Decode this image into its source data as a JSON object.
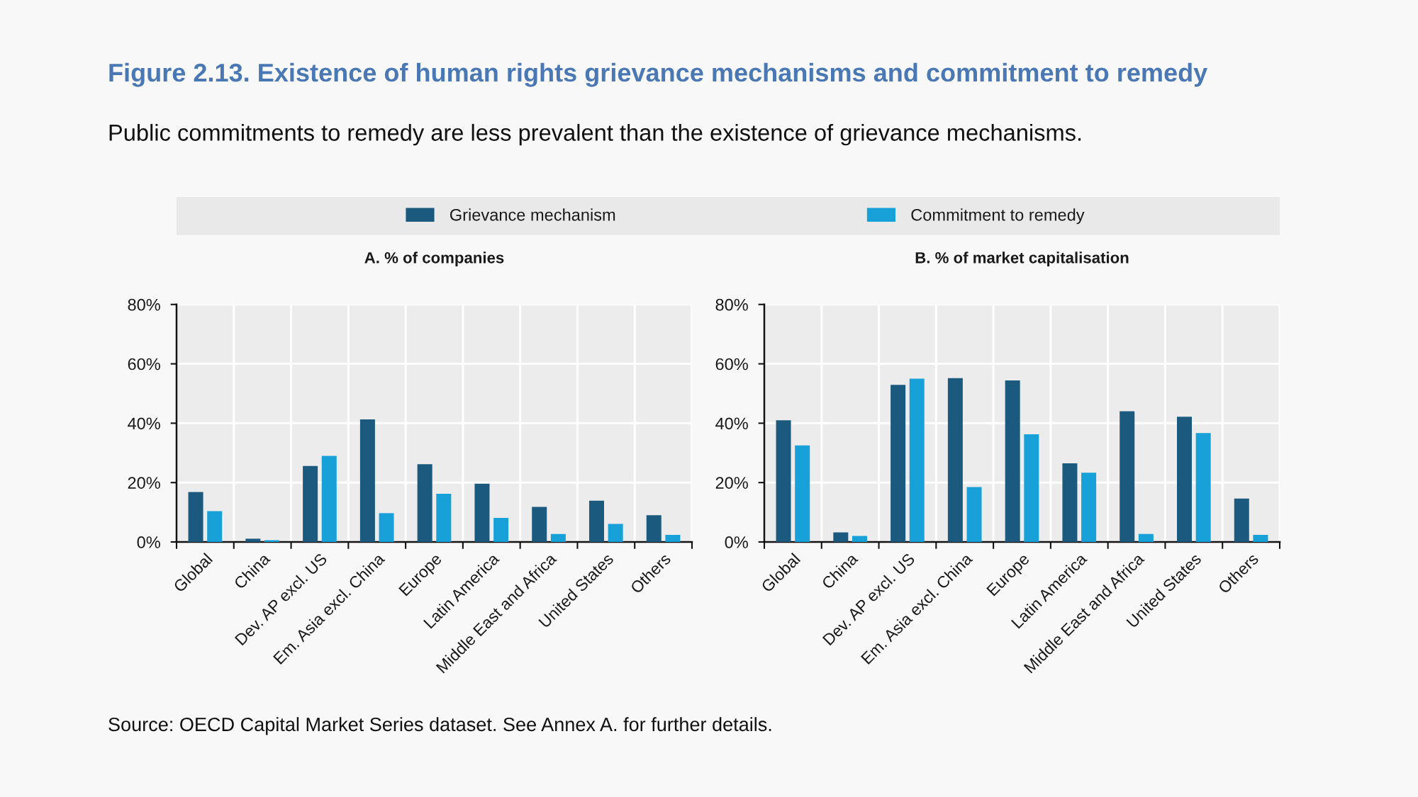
{
  "chart_data": [
    {
      "type": "bar",
      "title": "A. % of companies",
      "categories": [
        "Global",
        "China",
        "Dev. AP excl. US",
        "Em. Asia excl. China",
        "Europe",
        "Latin America",
        "Middle East and Africa",
        "United States",
        "Others"
      ],
      "series": [
        {
          "name": "Grievance mechanism",
          "color": "#1b5a7e",
          "values": [
            16.8,
            1.1,
            25.6,
            41.3,
            26.2,
            19.6,
            11.8,
            13.9,
            9.0
          ]
        },
        {
          "name": "Commitment to remedy",
          "color": "#18a0d8",
          "values": [
            10.4,
            0.6,
            29.0,
            9.7,
            16.2,
            8.1,
            2.7,
            6.1,
            2.4
          ]
        }
      ],
      "ylim": [
        0,
        80
      ],
      "yticks": [
        {
          "value": 0,
          "label": "0%"
        },
        {
          "value": 20,
          "label": "20%"
        },
        {
          "value": 40,
          "label": "40%"
        },
        {
          "value": 60,
          "label": "60%"
        },
        {
          "value": 80,
          "label": "80%"
        }
      ],
      "grid": true,
      "legend": "top",
      "annotations": [
        "Figure 2.13. Existence of human rights grievance mechanisms and commitment to remedy",
        "Public commitments to remedy are less prevalent than the existence of grievance mechanisms.",
        "Source: OECD Capital Market Series dataset. See Annex A. for further details."
      ]
    },
    {
      "type": "bar",
      "title": "B. % of market capitalisation",
      "categories": [
        "Global",
        "China",
        "Dev. AP excl. US",
        "Em. Asia excl. China",
        "Europe",
        "Latin America",
        "Middle East and Africa",
        "United States",
        "Others"
      ],
      "series": [
        {
          "name": "Grievance mechanism",
          "color": "#1b5a7e",
          "values": [
            41.0,
            3.2,
            52.9,
            55.2,
            54.4,
            26.5,
            44.0,
            42.2,
            14.6
          ]
        },
        {
          "name": "Commitment to remedy",
          "color": "#18a0d8",
          "values": [
            32.5,
            2.0,
            55.0,
            18.5,
            36.3,
            23.3,
            2.7,
            36.7,
            2.4
          ]
        }
      ],
      "ylim": [
        0,
        80
      ],
      "yticks": [
        {
          "value": 0,
          "label": "0%"
        },
        {
          "value": 20,
          "label": "20%"
        },
        {
          "value": 40,
          "label": "40%"
        },
        {
          "value": 60,
          "label": "60%"
        },
        {
          "value": 80,
          "label": "80%"
        }
      ],
      "grid": true
    }
  ]
}
